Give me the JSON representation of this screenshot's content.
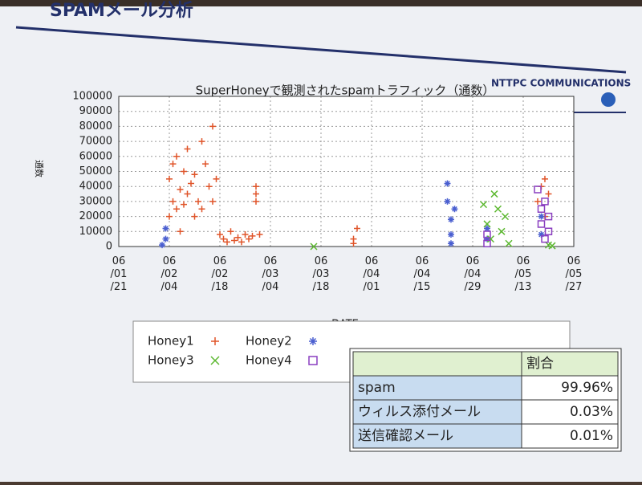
{
  "slide_title": "SPAMメール分析",
  "logo": "NTTPC COMMUNICATIONS",
  "chart_data": {
    "type": "scatter",
    "title": "SuperHoneyで観測されたspamトラフィック（通数）",
    "x_label": "DATE",
    "y_label": "通数",
    "xlim": [
      0,
      126
    ],
    "xticks": [
      {
        "value": 0,
        "label": "06/01/21"
      },
      {
        "value": 14,
        "label": "06/02/04"
      },
      {
        "value": 28,
        "label": "06/02/18"
      },
      {
        "value": 42,
        "label": "06/03/04"
      },
      {
        "value": 56,
        "label": "06/03/18"
      },
      {
        "value": 70,
        "label": "06/04/01"
      },
      {
        "value": 84,
        "label": "06/04/15"
      },
      {
        "value": 98,
        "label": "06/04/29"
      },
      {
        "value": 112,
        "label": "06/05/13"
      },
      {
        "value": 126,
        "label": "06/05/27"
      }
    ],
    "ylim": [
      0,
      100000
    ],
    "yticks": [
      0,
      10000,
      20000,
      30000,
      40000,
      50000,
      60000,
      70000,
      80000,
      90000,
      100000
    ],
    "grid": true,
    "series": [
      {
        "name": "Honey1",
        "color": "#e0552a",
        "marker": "plus",
        "x": [
          14,
          14,
          15,
          15,
          16,
          16,
          17,
          17,
          18,
          18,
          19,
          19,
          20,
          21,
          21,
          22,
          23,
          23,
          24,
          25,
          26,
          26,
          27,
          28,
          29,
          30,
          31,
          32,
          33,
          34,
          35,
          36,
          37,
          38,
          38,
          38,
          39,
          65,
          65,
          66,
          116,
          117,
          118,
          118,
          119
        ],
        "values": [
          20000,
          45000,
          30000,
          55000,
          25000,
          60000,
          38000,
          10000,
          50000,
          28000,
          65000,
          35000,
          42000,
          20000,
          48000,
          30000,
          70000,
          25000,
          55000,
          40000,
          80000,
          30000,
          45000,
          8000,
          5000,
          3000,
          10000,
          4000,
          6000,
          3000,
          8000,
          5000,
          7000,
          40000,
          30000,
          35000,
          8000,
          2000,
          5000,
          12000,
          30000,
          40000,
          20000,
          45000,
          35000
        ]
      },
      {
        "name": "Honey2",
        "color": "#4a5fd0",
        "marker": "star",
        "x": [
          12,
          13,
          13,
          91,
          91,
          92,
          92,
          92,
          93,
          102,
          102,
          117,
          117
        ],
        "values": [
          1000,
          5000,
          12000,
          42000,
          30000,
          18000,
          8000,
          2000,
          25000,
          5000,
          12000,
          20000,
          8000
        ]
      },
      {
        "name": "Honey3",
        "color": "#5cb830",
        "marker": "cross",
        "x": [
          54,
          101,
          102,
          103,
          104,
          105,
          106,
          107,
          108,
          119,
          120
        ],
        "values": [
          0,
          28000,
          15000,
          5000,
          35000,
          25000,
          10000,
          20000,
          2000,
          1000,
          500
        ]
      },
      {
        "name": "Honey4",
        "color": "#8a3fc0",
        "marker": "square",
        "x": [
          102,
          102,
          116,
          117,
          117,
          118,
          118,
          119,
          119
        ],
        "values": [
          2000,
          8000,
          38000,
          15000,
          25000,
          30000,
          5000,
          20000,
          10000
        ]
      }
    ]
  },
  "table": {
    "header": [
      "",
      "割合"
    ],
    "rows": [
      [
        "spam",
        "99.96%"
      ],
      [
        "ウィルス添付メール",
        "0.03%"
      ],
      [
        "送信確認メール",
        "0.01%"
      ]
    ]
  }
}
